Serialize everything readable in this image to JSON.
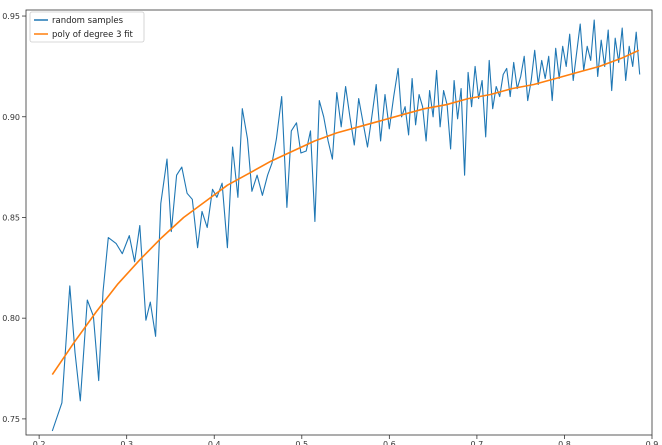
{
  "chart_data": {
    "type": "line",
    "title": "",
    "xlabel": "",
    "ylabel": "",
    "xlim": [
      0.185,
      0.9
    ],
    "ylim": [
      0.742,
      0.953
    ],
    "x_ticks": [
      0.2,
      0.3,
      0.4,
      0.5,
      0.6,
      0.7,
      0.8,
      0.9
    ],
    "x_tick_labels": [
      "0.2",
      "0.3",
      "0.4",
      "0.5",
      "0.6",
      "0.7",
      "0.8",
      "0.9"
    ],
    "y_ticks": [
      0.75,
      0.8,
      0.85,
      0.9,
      0.95
    ],
    "y_tick_labels": [
      "0.75",
      "0.80",
      "0.85",
      "0.90",
      "0.95"
    ],
    "grid": false,
    "legend_position": "top-left",
    "series": [
      {
        "name": "random samples",
        "color": "#1f77b4",
        "style": "line",
        "x": [
          0.215,
          0.226,
          0.235,
          0.241,
          0.247,
          0.255,
          0.262,
          0.268,
          0.273,
          0.279,
          0.288,
          0.295,
          0.303,
          0.309,
          0.315,
          0.322,
          0.327,
          0.333,
          0.339,
          0.346,
          0.351,
          0.357,
          0.363,
          0.369,
          0.375,
          0.381,
          0.386,
          0.392,
          0.398,
          0.403,
          0.409,
          0.415,
          0.421,
          0.427,
          0.432,
          0.438,
          0.443,
          0.449,
          0.455,
          0.461,
          0.466,
          0.471,
          0.477,
          0.483,
          0.488,
          0.494,
          0.499,
          0.505,
          0.51,
          0.515,
          0.52,
          0.525,
          0.53,
          0.535,
          0.54,
          0.545,
          0.55,
          0.555,
          0.56,
          0.565,
          0.57,
          0.575,
          0.58,
          0.585,
          0.59,
          0.595,
          0.6,
          0.605,
          0.61,
          0.614,
          0.618,
          0.622,
          0.626,
          0.63,
          0.634,
          0.638,
          0.642,
          0.646,
          0.65,
          0.654,
          0.658,
          0.662,
          0.666,
          0.67,
          0.674,
          0.678,
          0.682,
          0.686,
          0.69,
          0.694,
          0.698,
          0.702,
          0.706,
          0.71,
          0.714,
          0.718,
          0.722,
          0.726,
          0.73,
          0.734,
          0.738,
          0.742,
          0.746,
          0.75,
          0.754,
          0.758,
          0.762,
          0.766,
          0.77,
          0.774,
          0.778,
          0.782,
          0.786,
          0.79,
          0.794,
          0.798,
          0.802,
          0.806,
          0.81,
          0.814,
          0.818,
          0.822,
          0.826,
          0.83,
          0.834,
          0.838,
          0.842,
          0.846,
          0.85,
          0.854,
          0.858,
          0.862,
          0.866,
          0.87,
          0.874,
          0.878,
          0.882,
          0.886
        ],
        "y": [
          0.744,
          0.758,
          0.816,
          0.783,
          0.759,
          0.809,
          0.801,
          0.769,
          0.813,
          0.84,
          0.837,
          0.832,
          0.841,
          0.828,
          0.846,
          0.799,
          0.808,
          0.791,
          0.857,
          0.879,
          0.843,
          0.871,
          0.875,
          0.862,
          0.859,
          0.835,
          0.853,
          0.845,
          0.864,
          0.86,
          0.867,
          0.835,
          0.885,
          0.86,
          0.904,
          0.889,
          0.863,
          0.871,
          0.861,
          0.871,
          0.877,
          0.889,
          0.91,
          0.855,
          0.893,
          0.897,
          0.882,
          0.883,
          0.893,
          0.848,
          0.908,
          0.9,
          0.888,
          0.879,
          0.912,
          0.895,
          0.915,
          0.9,
          0.886,
          0.909,
          0.897,
          0.885,
          0.9,
          0.916,
          0.888,
          0.911,
          0.894,
          0.91,
          0.924,
          0.9,
          0.905,
          0.891,
          0.919,
          0.896,
          0.911,
          0.905,
          0.888,
          0.913,
          0.9,
          0.923,
          0.895,
          0.913,
          0.906,
          0.884,
          0.918,
          0.899,
          0.914,
          0.871,
          0.922,
          0.905,
          0.925,
          0.909,
          0.918,
          0.89,
          0.928,
          0.904,
          0.915,
          0.91,
          0.921,
          0.924,
          0.91,
          0.927,
          0.914,
          0.92,
          0.93,
          0.908,
          0.918,
          0.933,
          0.916,
          0.928,
          0.919,
          0.93,
          0.908,
          0.934,
          0.919,
          0.935,
          0.925,
          0.941,
          0.918,
          0.932,
          0.946,
          0.923,
          0.935,
          0.928,
          0.948,
          0.92,
          0.938,
          0.925,
          0.943,
          0.913,
          0.939,
          0.927,
          0.944,
          0.918,
          0.935,
          0.925,
          0.942,
          0.921
        ]
      },
      {
        "name": "poly of degree 3 fit",
        "color": "#ff7f0e",
        "style": "line",
        "x": [
          0.215,
          0.24,
          0.265,
          0.29,
          0.315,
          0.34,
          0.365,
          0.39,
          0.415,
          0.44,
          0.465,
          0.49,
          0.515,
          0.54,
          0.565,
          0.59,
          0.615,
          0.64,
          0.665,
          0.69,
          0.715,
          0.74,
          0.765,
          0.79,
          0.815,
          0.84,
          0.865,
          0.885
        ],
        "y": [
          0.772,
          0.788,
          0.803,
          0.817,
          0.829,
          0.84,
          0.85,
          0.858,
          0.866,
          0.872,
          0.878,
          0.883,
          0.888,
          0.892,
          0.895,
          0.898,
          0.901,
          0.904,
          0.906,
          0.909,
          0.911,
          0.914,
          0.916,
          0.919,
          0.922,
          0.925,
          0.929,
          0.933
        ]
      }
    ]
  }
}
